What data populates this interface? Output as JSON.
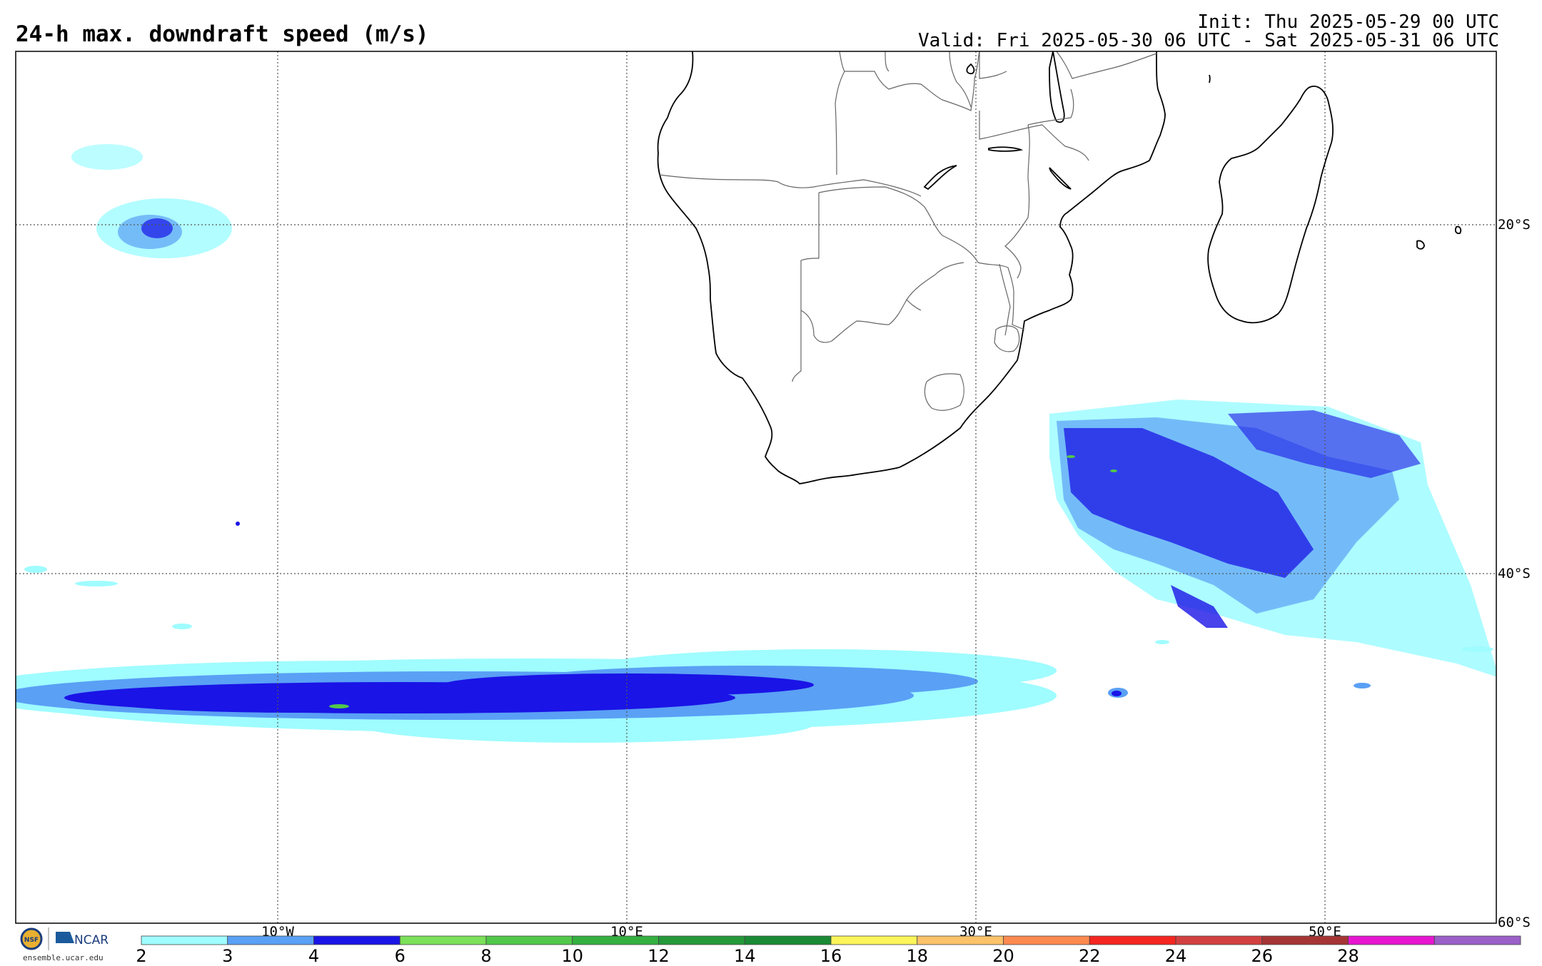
{
  "title": "24-h max. downdraft speed (m/s)",
  "init_text": "Init: Thu 2025-05-29 00 UTC",
  "valid_text": "Valid: Fri 2025-05-30 06 UTC - Sat 2025-05-31 06 UTC",
  "lat_labels": [
    "20°S",
    "40°S",
    "60°S"
  ],
  "lon_labels": [
    "10°W",
    "10°E",
    "30°E",
    "50°E"
  ],
  "colorbar": {
    "ticks": [
      "2",
      "3",
      "4",
      "6",
      "8",
      "10",
      "12",
      "14",
      "16",
      "18",
      "20",
      "22",
      "24",
      "26",
      "28"
    ],
    "colors": [
      "#9ffcff",
      "#5aa0f5",
      "#1a14e6",
      "#7be05a",
      "#52c84a",
      "#34b040",
      "#25983a",
      "#1a8a35",
      "#fbf55a",
      "#fcc26a",
      "#fc8a50",
      "#f52520",
      "#d24040",
      "#a53535",
      "#e815d0",
      "#9a60c8"
    ]
  },
  "logo": {
    "org1": "NSF",
    "org2": "NCAR",
    "url": "ensemble.ucar.edu"
  }
}
